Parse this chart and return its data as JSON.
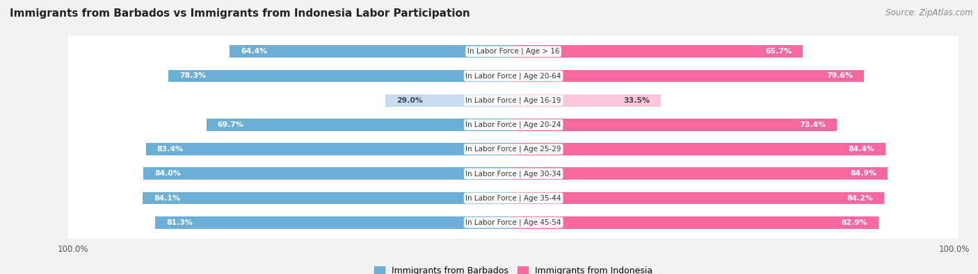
{
  "title": "Immigrants from Barbados vs Immigrants from Indonesia Labor Participation",
  "source": "Source: ZipAtlas.com",
  "categories": [
    "In Labor Force | Age > 16",
    "In Labor Force | Age 20-64",
    "In Labor Force | Age 16-19",
    "In Labor Force | Age 20-24",
    "In Labor Force | Age 25-29",
    "In Labor Force | Age 30-34",
    "In Labor Force | Age 35-44",
    "In Labor Force | Age 45-54"
  ],
  "barbados_values": [
    64.4,
    78.3,
    29.0,
    69.7,
    83.4,
    84.0,
    84.1,
    81.3
  ],
  "indonesia_values": [
    65.7,
    79.6,
    33.5,
    73.4,
    84.4,
    84.9,
    84.2,
    82.9
  ],
  "barbados_color": "#6baed6",
  "barbados_light_color": "#c6dbef",
  "indonesia_color": "#f768a1",
  "indonesia_light_color": "#fcc5de",
  "bg_color": "#f2f2f2",
  "row_bg_even": "#e8e8e8",
  "row_bg_odd": "#efefef",
  "bar_height": 0.62,
  "max_value": 100.0,
  "legend_barbados": "Immigrants from Barbados",
  "legend_indonesia": "Immigrants from Indonesia"
}
